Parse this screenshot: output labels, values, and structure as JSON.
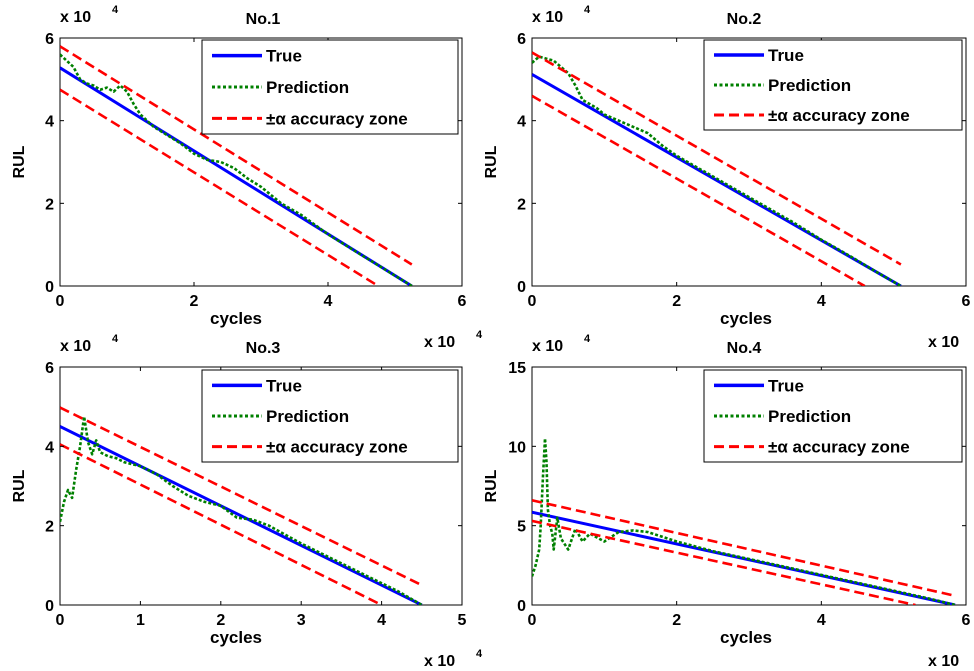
{
  "chart_data": [
    {
      "type": "line",
      "title": "No.1",
      "xlabel": "cycles",
      "ylabel": "RUL",
      "x_multiplier_label": "x 10",
      "y_multiplier_label": "x 10",
      "multiplier_exponent": "4",
      "xlim": [
        0,
        6
      ],
      "ylim": [
        0,
        6
      ],
      "xticks": [
        "0",
        "2",
        "4",
        "6"
      ],
      "yticks": [
        "0",
        "2",
        "4",
        "6"
      ],
      "legend_position": "top-right",
      "legend": [
        "True",
        "Prediction",
        "±α accuracy zone"
      ],
      "series": [
        {
          "name": "True",
          "color": "#0000ff",
          "style": "solid",
          "x": [
            0,
            5.25
          ],
          "y": [
            5.28,
            0
          ]
        },
        {
          "name": "Prediction",
          "color": "#008000",
          "style": "dotted",
          "x": [
            0,
            0.1,
            0.2,
            0.3,
            0.4,
            0.5,
            0.6,
            0.7,
            0.8,
            0.9,
            1.0,
            1.1,
            1.2,
            1.4,
            1.6,
            1.8,
            2.0,
            2.2,
            2.4,
            2.6,
            2.8,
            3.0,
            3.3,
            3.6,
            4.0,
            4.4,
            4.8,
            5.25
          ],
          "y": [
            5.6,
            5.45,
            5.3,
            5.0,
            4.9,
            4.85,
            4.75,
            4.8,
            4.7,
            4.85,
            4.7,
            4.4,
            4.15,
            3.85,
            3.65,
            3.45,
            3.2,
            3.05,
            3.0,
            2.85,
            2.6,
            2.4,
            2.0,
            1.72,
            1.25,
            0.85,
            0.45,
            0.0
          ]
        },
        {
          "name": "±α accuracy zone",
          "color": "#ff0000",
          "style": "dashed",
          "x": [
            0,
            5.25
          ],
          "y": [
            5.8,
            0.52
          ]
        },
        {
          "name": "±α accuracy zone",
          "color": "#ff0000",
          "style": "dashed",
          "x": [
            0,
            4.75
          ],
          "y": [
            4.75,
            0
          ]
        }
      ]
    },
    {
      "type": "line",
      "title": "No.2",
      "xlabel": "cycles",
      "ylabel": "RUL",
      "x_multiplier_label": "x 10",
      "y_multiplier_label": "x 10",
      "multiplier_exponent": "4",
      "xlim": [
        0,
        6
      ],
      "ylim": [
        0,
        6
      ],
      "xticks": [
        "0",
        "2",
        "4",
        "6"
      ],
      "yticks": [
        "0",
        "2",
        "4",
        "6"
      ],
      "legend_position": "top-right",
      "legend": [
        "True",
        "Prediction",
        "±α accuracy zone"
      ],
      "series": [
        {
          "name": "True",
          "color": "#0000ff",
          "style": "solid",
          "x": [
            0,
            5.1
          ],
          "y": [
            5.12,
            0
          ]
        },
        {
          "name": "Prediction",
          "color": "#008000",
          "style": "dotted",
          "x": [
            0,
            0.1,
            0.2,
            0.3,
            0.4,
            0.5,
            0.6,
            0.7,
            0.8,
            0.9,
            1.0,
            1.2,
            1.4,
            1.6,
            1.8,
            2.0,
            2.4,
            2.8,
            3.2,
            3.6,
            4.0,
            4.4,
            4.8,
            5.1
          ],
          "y": [
            5.4,
            5.55,
            5.5,
            5.45,
            5.3,
            5.15,
            4.85,
            4.5,
            4.4,
            4.3,
            4.15,
            4.0,
            3.85,
            3.7,
            3.4,
            3.15,
            2.75,
            2.35,
            1.95,
            1.55,
            1.12,
            0.72,
            0.3,
            0.0
          ]
        },
        {
          "name": "±α accuracy zone",
          "color": "#ff0000",
          "style": "dashed",
          "x": [
            0,
            5.1
          ],
          "y": [
            5.65,
            0.52
          ]
        },
        {
          "name": "±α accuracy zone",
          "color": "#ff0000",
          "style": "dashed",
          "x": [
            0,
            4.6
          ],
          "y": [
            4.6,
            0
          ]
        }
      ]
    },
    {
      "type": "line",
      "title": "No.3",
      "xlabel": "cycles",
      "ylabel": "RUL",
      "x_multiplier_label": "x 10",
      "y_multiplier_label": "x 10",
      "multiplier_exponent": "4",
      "xlim": [
        0,
        5
      ],
      "ylim": [
        0,
        6
      ],
      "xticks": [
        "0",
        "1",
        "2",
        "3",
        "4",
        "5"
      ],
      "yticks": [
        "0",
        "2",
        "4",
        "6"
      ],
      "legend_position": "top-right",
      "legend": [
        "True",
        "Prediction",
        "±α accuracy zone"
      ],
      "series": [
        {
          "name": "True",
          "color": "#0000ff",
          "style": "solid",
          "x": [
            0,
            4.5
          ],
          "y": [
            4.5,
            0
          ]
        },
        {
          "name": "Prediction",
          "color": "#008000",
          "style": "dotted",
          "x": [
            0,
            0.05,
            0.1,
            0.15,
            0.2,
            0.25,
            0.3,
            0.35,
            0.4,
            0.45,
            0.5,
            0.6,
            0.7,
            0.8,
            1.0,
            1.2,
            1.4,
            1.6,
            1.8,
            2.0,
            2.2,
            2.4,
            2.6,
            3.0,
            3.4,
            3.8,
            4.2,
            4.5
          ],
          "y": [
            2.1,
            2.6,
            2.9,
            2.7,
            3.4,
            4.0,
            4.75,
            4.1,
            3.8,
            4.15,
            3.85,
            3.75,
            3.7,
            3.6,
            3.5,
            3.3,
            3.0,
            2.75,
            2.6,
            2.5,
            2.2,
            2.15,
            2.0,
            1.55,
            1.15,
            0.75,
            0.35,
            0.0
          ]
        },
        {
          "name": "±α accuracy zone",
          "color": "#ff0000",
          "style": "dashed",
          "x": [
            0,
            4.5
          ],
          "y": [
            4.98,
            0.5
          ]
        },
        {
          "name": "±α accuracy zone",
          "color": "#ff0000",
          "style": "dashed",
          "x": [
            0,
            4.0
          ],
          "y": [
            4.05,
            0
          ]
        }
      ]
    },
    {
      "type": "line",
      "title": "No.4",
      "xlabel": "cycles",
      "ylabel": "RUL",
      "x_multiplier_label": "x 10",
      "y_multiplier_label": "x 10",
      "multiplier_exponent": "4",
      "xlim": [
        0,
        6
      ],
      "ylim": [
        0,
        15
      ],
      "xticks": [
        "0",
        "2",
        "4",
        "6"
      ],
      "yticks": [
        "0",
        "5",
        "10",
        "15"
      ],
      "legend_position": "top-right",
      "legend": [
        "True",
        "Prediction",
        "±α accuracy zone"
      ],
      "series": [
        {
          "name": "True",
          "color": "#0000ff",
          "style": "solid",
          "x": [
            0,
            5.85
          ],
          "y": [
            5.85,
            0
          ]
        },
        {
          "name": "Prediction",
          "color": "#008000",
          "style": "dotted",
          "x": [
            0,
            0.05,
            0.1,
            0.12,
            0.15,
            0.18,
            0.2,
            0.22,
            0.25,
            0.28,
            0.3,
            0.35,
            0.4,
            0.5,
            0.6,
            0.7,
            0.8,
            1.0,
            1.2,
            1.4,
            1.6,
            2.0,
            2.5,
            3.0,
            3.5,
            4.0,
            4.5,
            5.0,
            5.5,
            5.85
          ],
          "y": [
            1.8,
            2.5,
            3.5,
            5.0,
            8.0,
            10.5,
            9.0,
            6.0,
            5.0,
            4.5,
            3.5,
            5.5,
            4.2,
            3.5,
            4.8,
            4.0,
            4.5,
            4.0,
            4.6,
            4.7,
            4.6,
            4.0,
            3.4,
            2.9,
            2.4,
            1.9,
            1.4,
            0.9,
            0.4,
            0.0
          ]
        },
        {
          "name": "±α accuracy zone",
          "color": "#ff0000",
          "style": "dashed",
          "x": [
            0,
            5.85
          ],
          "y": [
            6.6,
            0.58
          ]
        },
        {
          "name": "±α accuracy zone",
          "color": "#ff0000",
          "style": "dashed",
          "x": [
            0,
            5.3
          ],
          "y": [
            5.3,
            0
          ]
        }
      ]
    }
  ]
}
